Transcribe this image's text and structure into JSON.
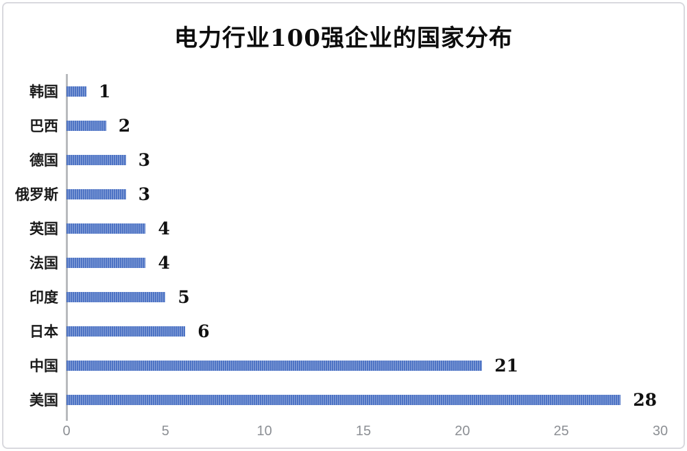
{
  "frame": {
    "background": "#ffffff",
    "border_color": "#d9d9de"
  },
  "chart_data": {
    "type": "bar",
    "orientation": "horizontal",
    "title": "电力行业100强企业的国家分布",
    "categories": [
      "韩国",
      "巴西",
      "德国",
      "俄罗斯",
      "英国",
      "法国",
      "印度",
      "日本",
      "中国",
      "美国"
    ],
    "values": [
      1,
      2,
      3,
      3,
      4,
      4,
      5,
      6,
      21,
      28
    ],
    "xlabel": "",
    "ylabel": "",
    "xlim": [
      0,
      30
    ],
    "x_ticks": [
      0,
      5,
      10,
      15,
      20,
      25,
      30
    ],
    "grid": false,
    "legend": "none",
    "value_labels_shown": true,
    "bar_color": "#4d73c4",
    "bar_stripe_color": "#8ca5da",
    "axis_line_color": "#b8babd",
    "tick_label_color": "#8c8f94",
    "value_label_color": "#111111",
    "title_color": "#0d0d0d"
  }
}
